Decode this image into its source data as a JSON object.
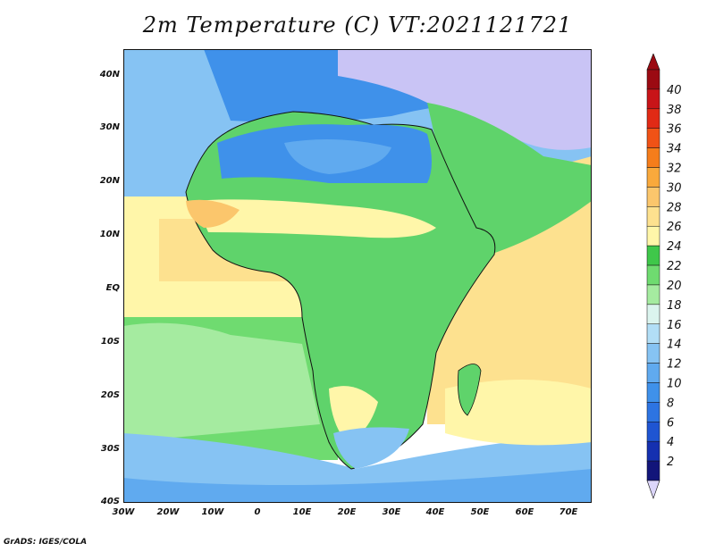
{
  "title": "2m Temperature (C) VT:2021121721",
  "footer": "GrADS: IGES/COLA",
  "axes": {
    "lat_labels": [
      "40N",
      "30N",
      "20N",
      "10N",
      "EQ",
      "10S",
      "20S",
      "30S",
      "40S"
    ],
    "lon_labels": [
      "30W",
      "20W",
      "10W",
      "0",
      "10E",
      "20E",
      "30E",
      "40E",
      "50E",
      "60E",
      "70E"
    ]
  },
  "colorbar": {
    "labels": [
      "2",
      "4",
      "6",
      "8",
      "10",
      "12",
      "14",
      "16",
      "18",
      "20",
      "22",
      "24",
      "26",
      "28",
      "30",
      "32",
      "34",
      "36",
      "38",
      "40"
    ],
    "colors": [
      "#12157a",
      "#1530b0",
      "#1f55d2",
      "#2d74e2",
      "#3f91ea",
      "#60aaef",
      "#86c3f3",
      "#b2def6",
      "#dbf4ee",
      "#a5eba0",
      "#6fdb70",
      "#3fc74a",
      "#fff6a9",
      "#fde18f",
      "#fbc66c",
      "#f9a93c",
      "#f57d1b",
      "#f05216",
      "#e12a15",
      "#c81418",
      "#9b0a12"
    ],
    "under_color": "#dcd6fa",
    "over_color": "#9b0a12"
  },
  "colors": {
    "ocean_tropical": "#fde18f",
    "ocean_subtropical": "#fff6a9",
    "ocean_south_cool": "#86d890",
    "sea_cold": "#3f91ea",
    "land_sahara": "#3f91ea",
    "land_savanna": "#fff6a9",
    "land_green": "#5fd36b",
    "land_highland": "#86c3f3",
    "land_hot": "#fbc66c",
    "eurasia_cold": "#c9c4f5"
  }
}
